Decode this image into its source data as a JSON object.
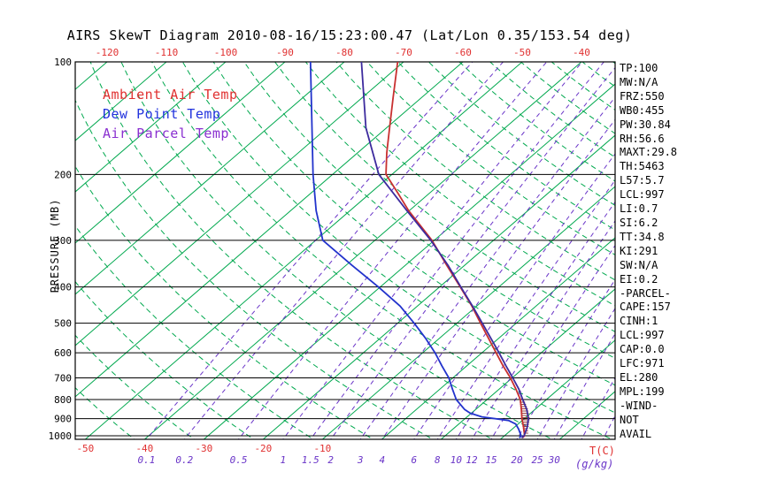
{
  "header": {
    "title": "AIRS SkewT Diagram 2010-08-16/15:23:00.47 (Lat/Lon 0.35/153.54 deg)"
  },
  "legend": [
    {
      "label": "Ambient Air Temp",
      "color": "#e03030"
    },
    {
      "label": "Dew Point Temp",
      "color": "#2233dd"
    },
    {
      "label": "Air Parcel Temp",
      "color": "#8a30d0"
    }
  ],
  "axes": {
    "pressure_label": "PRESSURE (MB)",
    "pressure_ticks": [
      100,
      200,
      300,
      400,
      500,
      600,
      700,
      800,
      900,
      1000
    ],
    "top_temp_ticks": [
      -120,
      -110,
      -100,
      -90,
      -80,
      -70,
      -60,
      -50,
      -40
    ],
    "bottom_temp_ticks": [
      -50,
      -40,
      -30,
      -20,
      -10
    ],
    "temp_unit_label": "T(C)",
    "mixing_ratio_ticks": [
      0.1,
      0.2,
      0.5,
      1,
      1.5,
      2,
      3,
      4,
      6,
      8,
      10,
      12,
      15,
      20,
      25,
      30
    ],
    "mixing_ratio_unit_label": "(g/kg)"
  },
  "stats": [
    "TP:100",
    "MW:N/A",
    "FRZ:550",
    "WB0:455",
    "PW:30.84",
    "RH:56.6",
    "MAXT:29.8",
    "TH:5463",
    "L57:5.7",
    "LCL:997",
    "LI:0.7",
    "SI:6.2",
    "TT:34.8",
    "KI:291",
    "SW:N/A",
    "EI:0.2",
    "-PARCEL-",
    "CAPE:157",
    "CINH:1",
    "LCL:997",
    "CAP:0.0",
    "LFC:971",
    "EL:280",
    "MPL:199",
    "-WIND-",
    "NOT",
    "AVAIL"
  ],
  "chart_data": {
    "type": "line",
    "variant": "skew-t-log-p",
    "title": "AIRS SkewT Diagram 2010-08-16/15:23:00.47 (Lat/Lon 0.35/153.54 deg)",
    "ylabel": "PRESSURE (MB)",
    "xlabel": "T(C)",
    "pressure_range_mb": [
      100,
      1022
    ],
    "isotherm_step_c": 10,
    "isotherm_range_c": [
      -130,
      50
    ],
    "dry_adiabats_theta_k": [
      220,
      460,
      10
    ],
    "mixing_ratio_lines_gkg": [
      0.1,
      0.2,
      0.5,
      1,
      1.5,
      2,
      3,
      4,
      6,
      8,
      10,
      12,
      15,
      20,
      25,
      30,
      40,
      50
    ],
    "colors": {
      "isotherm": "#00a84e",
      "dry_adiabat": "#00a84e",
      "mixing_ratio": "#6a35c8",
      "pressure_line": "#000000",
      "frame": "#000000",
      "top_tick_label": "#e03030",
      "hatch": "#9a4040"
    },
    "series": [
      {
        "key": "ambient-temp-curve",
        "name": "Ambient Air Temp",
        "color": "#c83030",
        "points_p_t": [
          [
            1010,
            23.4
          ],
          [
            1000,
            23.4
          ],
          [
            950,
            21.6
          ],
          [
            900,
            19.6
          ],
          [
            850,
            17.7
          ],
          [
            800,
            15.6
          ],
          [
            750,
            12.8
          ],
          [
            700,
            9.7
          ],
          [
            650,
            6.1
          ],
          [
            600,
            2.4
          ],
          [
            550,
            -1.6
          ],
          [
            500,
            -6.0
          ],
          [
            450,
            -10.8
          ],
          [
            400,
            -16.5
          ],
          [
            350,
            -23.0
          ],
          [
            300,
            -30.4
          ],
          [
            250,
            -40.1
          ],
          [
            225,
            -45.2
          ],
          [
            200,
            -51.0
          ],
          [
            175,
            -55.1
          ],
          [
            150,
            -59.5
          ],
          [
            125,
            -64.7
          ],
          [
            100,
            -71.0
          ]
        ]
      },
      {
        "key": "dew-point-curve",
        "name": "Dew Point Temp",
        "color": "#2233cc",
        "points_p_t": [
          [
            1010,
            22.9
          ],
          [
            1000,
            22.8
          ],
          [
            960,
            21.1
          ],
          [
            930,
            19.6
          ],
          [
            910,
            17.7
          ],
          [
            890,
            12.5
          ],
          [
            870,
            9.8
          ],
          [
            850,
            8.1
          ],
          [
            800,
            4.8
          ],
          [
            750,
            2.1
          ],
          [
            700,
            -0.7
          ],
          [
            650,
            -4.2
          ],
          [
            600,
            -7.9
          ],
          [
            550,
            -12.2
          ],
          [
            500,
            -17.2
          ],
          [
            450,
            -22.9
          ],
          [
            400,
            -30.3
          ],
          [
            350,
            -39.0
          ],
          [
            300,
            -48.8
          ],
          [
            250,
            -55.7
          ],
          [
            200,
            -63.3
          ],
          [
            150,
            -72.6
          ],
          [
            100,
            -85.7
          ]
        ]
      },
      {
        "key": "parcel-temp-curve",
        "name": "Air Parcel Temp",
        "color": "#3d2b9e",
        "points_p_t": [
          [
            1010,
            23.3
          ],
          [
            1000,
            23.3
          ],
          [
            950,
            22.2
          ],
          [
            900,
            20.7
          ],
          [
            850,
            18.6
          ],
          [
            800,
            16.0
          ],
          [
            750,
            13.3
          ],
          [
            700,
            10.1
          ],
          [
            650,
            6.6
          ],
          [
            600,
            2.9
          ],
          [
            550,
            -1.2
          ],
          [
            500,
            -5.7
          ],
          [
            450,
            -10.7
          ],
          [
            400,
            -16.4
          ],
          [
            350,
            -22.8
          ],
          [
            300,
            -30.6
          ],
          [
            250,
            -40.4
          ],
          [
            200,
            -52.2
          ],
          [
            150,
            -63.5
          ],
          [
            100,
            -77.1
          ]
        ]
      }
    ]
  }
}
